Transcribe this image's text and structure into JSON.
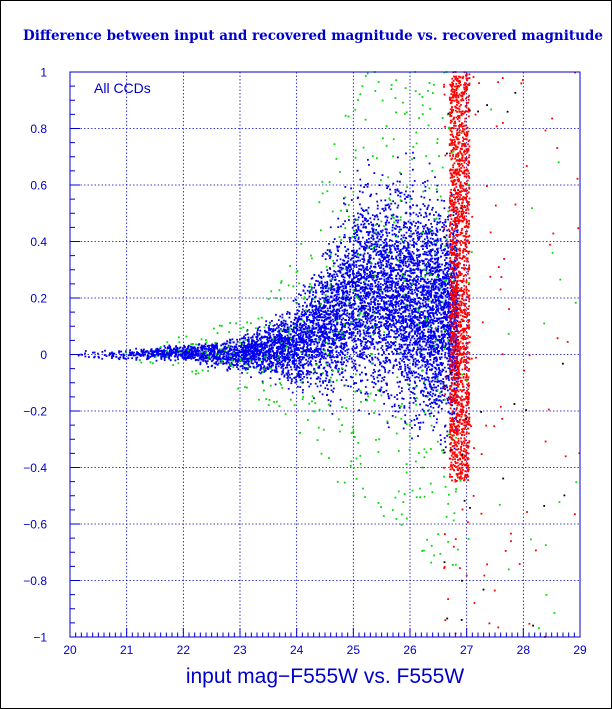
{
  "chart_data": {
    "type": "scatter",
    "title": "Difference between input and recovered magnitude vs. recovered magnitude",
    "xlabel": "input mag−F555W vs. F555W",
    "ylabel": "",
    "annotation": "All CCDs",
    "xlim": [
      20,
      29
    ],
    "ylim": [
      -1,
      1
    ],
    "x_ticks": [
      "20",
      "21",
      "22",
      "23",
      "24",
      "25",
      "26",
      "27",
      "28",
      "29"
    ],
    "y_ticks": [
      "−1",
      "−0.8",
      "−0.6",
      "−0.4",
      "−0.2",
      "0",
      "0.2",
      "0.4",
      "0.6",
      "0.8",
      "1"
    ],
    "grid": true,
    "point_colors": {
      "main": "#0000ee",
      "edge": "#00dd00",
      "limit": "#ff0000",
      "faint": "#000000"
    },
    "series": [
      {
        "color": "blue",
        "envelope": [
          {
            "x": 20.0,
            "y_low": -0.03,
            "y_high": 0.03
          },
          {
            "x": 21.0,
            "y_low": -0.035,
            "y_high": 0.035
          },
          {
            "x": 22.0,
            "y_low": -0.05,
            "y_high": 0.06
          },
          {
            "x": 23.0,
            "y_low": -0.12,
            "y_high": 0.12
          },
          {
            "x": 23.5,
            "y_low": -0.17,
            "y_high": 0.2
          },
          {
            "x": 24.0,
            "y_low": -0.26,
            "y_high": 0.33
          },
          {
            "x": 24.5,
            "y_low": -0.38,
            "y_high": 0.6
          },
          {
            "x": 25.0,
            "y_low": -0.45,
            "y_high": 0.9
          },
          {
            "x": 25.5,
            "y_low": -0.55,
            "y_high": 1.0
          },
          {
            "x": 26.0,
            "y_low": -0.62,
            "y_high": 1.0
          },
          {
            "x": 26.5,
            "y_low": -0.7,
            "y_high": 1.0
          },
          {
            "x": 26.8,
            "y_low": -0.75,
            "y_high": 1.0
          }
        ]
      },
      {
        "color": "red",
        "x_range": [
          26.7,
          27.05
        ],
        "y_range": [
          -0.45,
          1.0
        ],
        "scattered_x_range": [
          26.6,
          29.0
        ],
        "scattered_y_range": [
          -1.0,
          1.0
        ]
      }
    ]
  }
}
